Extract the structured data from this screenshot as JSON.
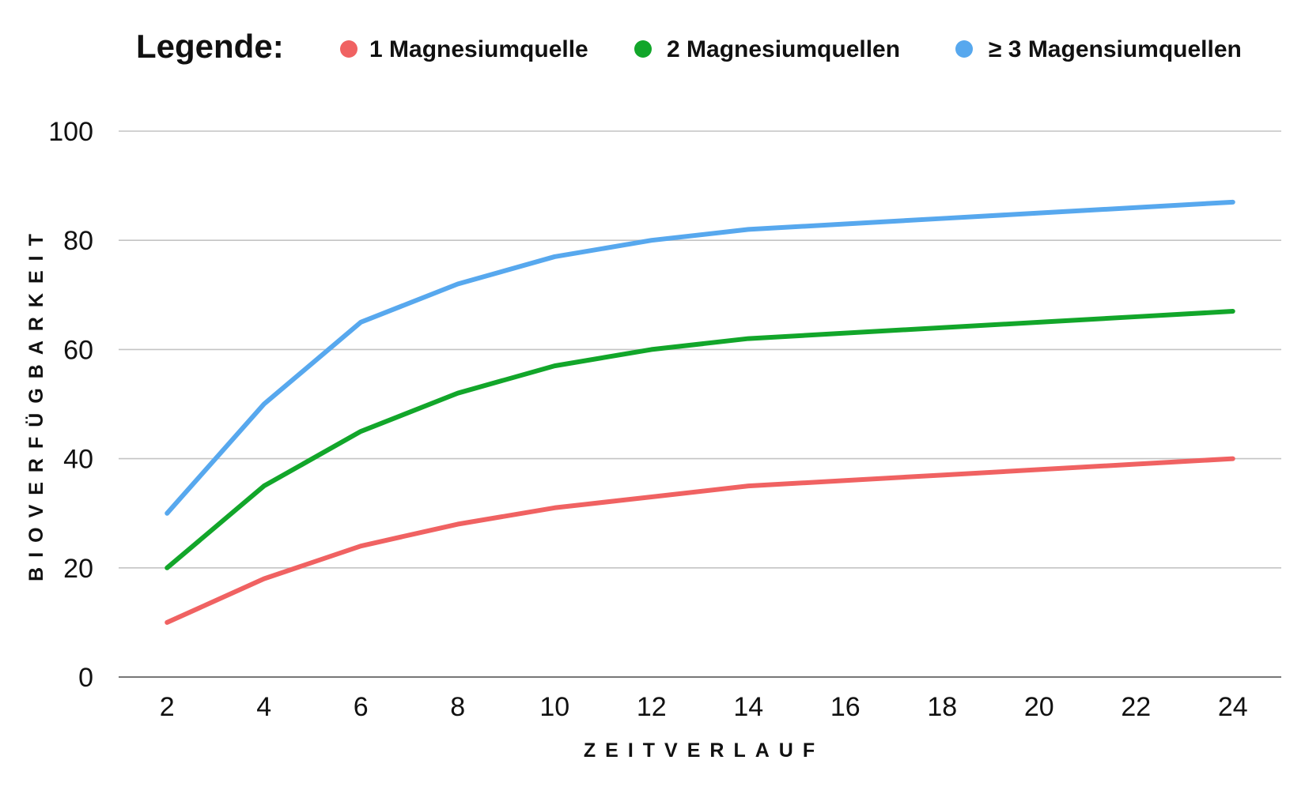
{
  "legend": {
    "title": "Legende:"
  },
  "chart_data": {
    "type": "line",
    "x": [
      2,
      4,
      6,
      8,
      10,
      12,
      14,
      16,
      18,
      20,
      22,
      24
    ],
    "series": [
      {
        "name": "1 Magnesiumquelle",
        "color": "#f06262",
        "values": [
          10,
          18,
          24,
          28,
          31,
          33,
          35,
          36,
          37,
          38,
          39,
          40
        ]
      },
      {
        "name": "2 Magnesiumquellen",
        "color": "#12a62a",
        "values": [
          20,
          35,
          45,
          52,
          57,
          60,
          62,
          63,
          64,
          65,
          66,
          67
        ]
      },
      {
        "name": "≥ 3 Magensiumquellen",
        "color": "#57a8ee",
        "values": [
          30,
          50,
          65,
          72,
          77,
          80,
          82,
          83,
          84,
          85,
          86,
          87
        ]
      }
    ],
    "xlabel": "ZEITVERLAUF",
    "ylabel": "BIOVERFÜGBARKEIT",
    "ylim": [
      0,
      100
    ],
    "yticks": [
      0,
      20,
      40,
      60,
      80,
      100
    ],
    "grid": true,
    "legend_position": "top"
  }
}
